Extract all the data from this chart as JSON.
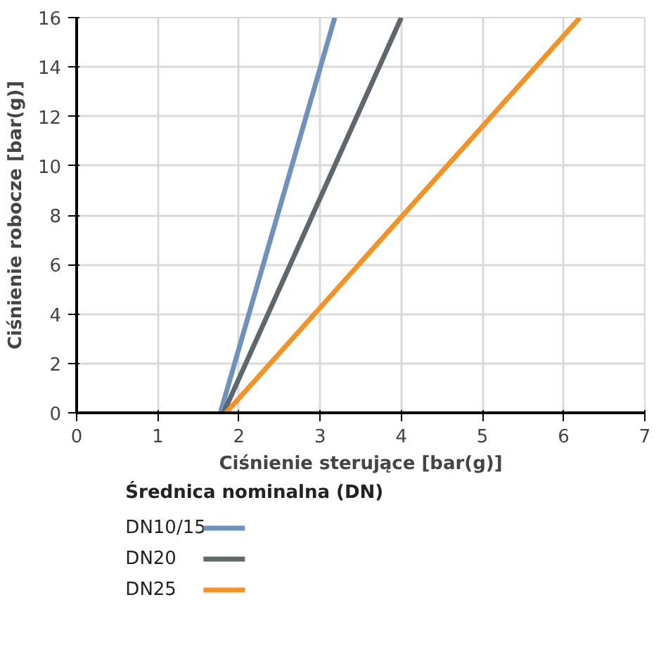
{
  "chart_data": {
    "type": "line",
    "xlabel": "Ciśnienie sterujące [bar(g)]",
    "ylabel": "Ciśnienie robocze [bar(g)]",
    "legend_title": "Średnica nominalna (DN)",
    "series": [
      {
        "name": "DN10/15",
        "color": "#6f91bd",
        "x": [
          1.77,
          3.18
        ],
        "values": [
          0,
          16
        ]
      },
      {
        "name": "DN20",
        "color": "#5f676d",
        "x": [
          1.81,
          4.0
        ],
        "values": [
          0,
          16
        ]
      },
      {
        "name": "DN25",
        "color": "#f39323",
        "x": [
          1.84,
          6.2
        ],
        "values": [
          0,
          16
        ]
      }
    ],
    "xlim": [
      0,
      7
    ],
    "ylim": [
      0,
      16
    ],
    "xticks": [
      0,
      1,
      2,
      3,
      4,
      5,
      6,
      7
    ],
    "yticks": [
      0,
      2,
      4,
      6,
      8,
      10,
      12,
      14,
      16
    ],
    "grid": true,
    "legend": "bottom left",
    "marker": "none",
    "line_style": "solid"
  }
}
